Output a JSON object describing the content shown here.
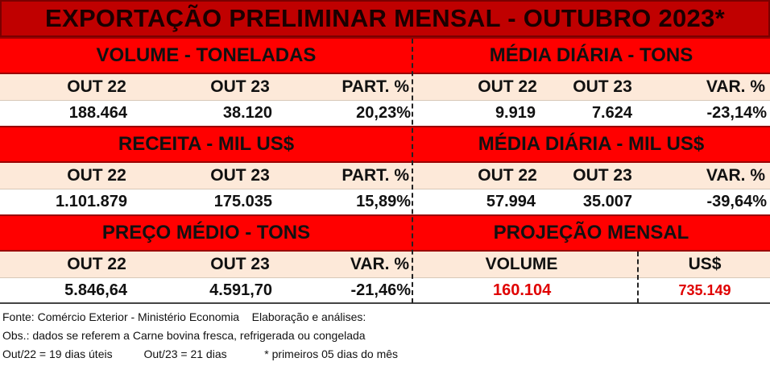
{
  "title": "EXPORTAÇÃO PRELIMINAR MENSAL  - OUTUBRO 2023*",
  "sections": {
    "volume": {
      "label": "VOLUME - TONELADAS",
      "headers": [
        "OUT 22",
        "OUT 23",
        "PART. %"
      ],
      "values": [
        "188.464",
        "38.120",
        "20,23%"
      ]
    },
    "media_diaria_tons": {
      "label": "MÉDIA DIÁRIA - TONS",
      "headers": [
        "OUT 22",
        "OUT 23",
        "VAR. %"
      ],
      "values": [
        "9.919",
        "7.624",
        "-23,14%"
      ]
    },
    "receita": {
      "label": "RECEITA - MIL US$",
      "headers": [
        "OUT 22",
        "OUT 23",
        "PART. %"
      ],
      "values": [
        "1.101.879",
        "175.035",
        "15,89%"
      ]
    },
    "media_diaria_usd": {
      "label": "MÉDIA DIÁRIA - MIL US$",
      "headers": [
        "OUT 22",
        "OUT 23",
        "VAR. %"
      ],
      "values": [
        "57.994",
        "35.007",
        "-39,64%"
      ]
    },
    "preco_medio": {
      "label": "PREÇO MÉDIO - TONS",
      "headers": [
        "OUT 22",
        "OUT 23",
        "VAR. %"
      ],
      "values": [
        "5.846,64",
        "4.591,70",
        "-21,46%"
      ]
    },
    "projecao": {
      "label": "PROJEÇÃO  MENSAL",
      "headers": [
        "VOLUME",
        "US$"
      ],
      "values": [
        "160.104",
        "735.149"
      ]
    }
  },
  "notes": {
    "line1": "Fonte: Comércio Exterior - Ministério Economia    Elaboração e análises:",
    "line2": "Obs.: dados se referem a Carne bovina fresca, refrigerada ou congelada",
    "line3": "Out/22 = 19 dias úteis          Out/23 = 21 dias            * primeiros 05 dias do mês"
  },
  "colors": {
    "title_bg": "#c00000",
    "section_bg": "#ff0000",
    "header_bg": "#fde9d9",
    "highlight_text": "#e00000"
  }
}
